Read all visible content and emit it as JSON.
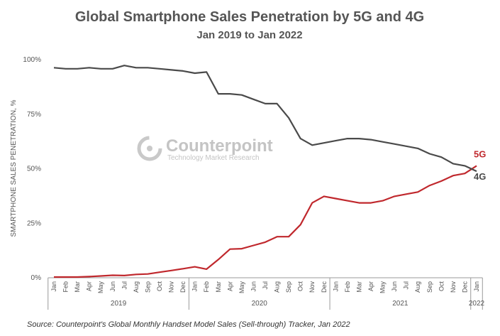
{
  "chart_data": {
    "type": "line",
    "title": "Global Smartphone Sales Penetration by 5G and 4G",
    "subtitle": "Jan 2019 to Jan 2022",
    "ylabel": "SMARTPHONE SALES PENETRATION, %",
    "xlabel": "",
    "ylim": [
      0,
      100
    ],
    "yticks": [
      {
        "value": 0,
        "label": "0%"
      },
      {
        "value": 25,
        "label": "25%"
      },
      {
        "value": 50,
        "label": "50%"
      },
      {
        "value": 75,
        "label": "75%"
      },
      {
        "value": 100,
        "label": "100%"
      }
    ],
    "categories": [
      "Jan",
      "Feb",
      "Mar",
      "Apr",
      "May",
      "Jun",
      "Jul",
      "Aug",
      "Sep",
      "Oct",
      "Nov",
      "Dec",
      "Jan",
      "Feb",
      "Mar",
      "Apr",
      "May",
      "Jun",
      "Jul",
      "Aug",
      "Sep",
      "Oct",
      "Nov",
      "Dec",
      "Jan",
      "Feb",
      "Mar",
      "Apr",
      "May",
      "Jun",
      "Jul",
      "Aug",
      "Sep",
      "Oct",
      "Nov",
      "Dec",
      "Jan"
    ],
    "year_groups": [
      {
        "label": "2019",
        "start": 0,
        "end": 11
      },
      {
        "label": "2020",
        "start": 12,
        "end": 23
      },
      {
        "label": "2021",
        "start": 24,
        "end": 35
      },
      {
        "label": "2022",
        "start": 36,
        "end": 36
      }
    ],
    "series": [
      {
        "name": "5G",
        "color": "#c0282d",
        "values": [
          0,
          0,
          0,
          0.2,
          0.5,
          0.8,
          0.7,
          1.2,
          1.4,
          2.2,
          3.0,
          3.8,
          4.7,
          3.6,
          8.0,
          12.8,
          13.0,
          14.5,
          16.0,
          18.5,
          18.5,
          24.0,
          34.0,
          37.0,
          36.0,
          35.0,
          34.0,
          34.0,
          35.0,
          37.0,
          38.0,
          39.0,
          42.0,
          44.0,
          46.5,
          47.5,
          51.0
        ]
      },
      {
        "name": "4G",
        "color": "#4a4a4a",
        "values": [
          96.0,
          95.5,
          95.5,
          96.0,
          95.5,
          95.5,
          97.0,
          96.0,
          96.0,
          95.5,
          95.0,
          94.5,
          93.5,
          94.0,
          84.0,
          84.0,
          83.5,
          81.5,
          79.5,
          79.5,
          73.0,
          63.5,
          60.5,
          61.5,
          62.5,
          63.5,
          63.5,
          63.0,
          62.0,
          61.0,
          60.0,
          59.0,
          56.5,
          55.0,
          52.0,
          51.0,
          48.5
        ]
      }
    ],
    "grid": false,
    "legend": "inline-right"
  },
  "watermark": {
    "brand": "Counterpoint",
    "tagline": "Technology Market Research"
  },
  "source": "Source: Counterpoint's Global Monthly Handset Model Sales (Sell-through) Tracker, Jan 2022"
}
